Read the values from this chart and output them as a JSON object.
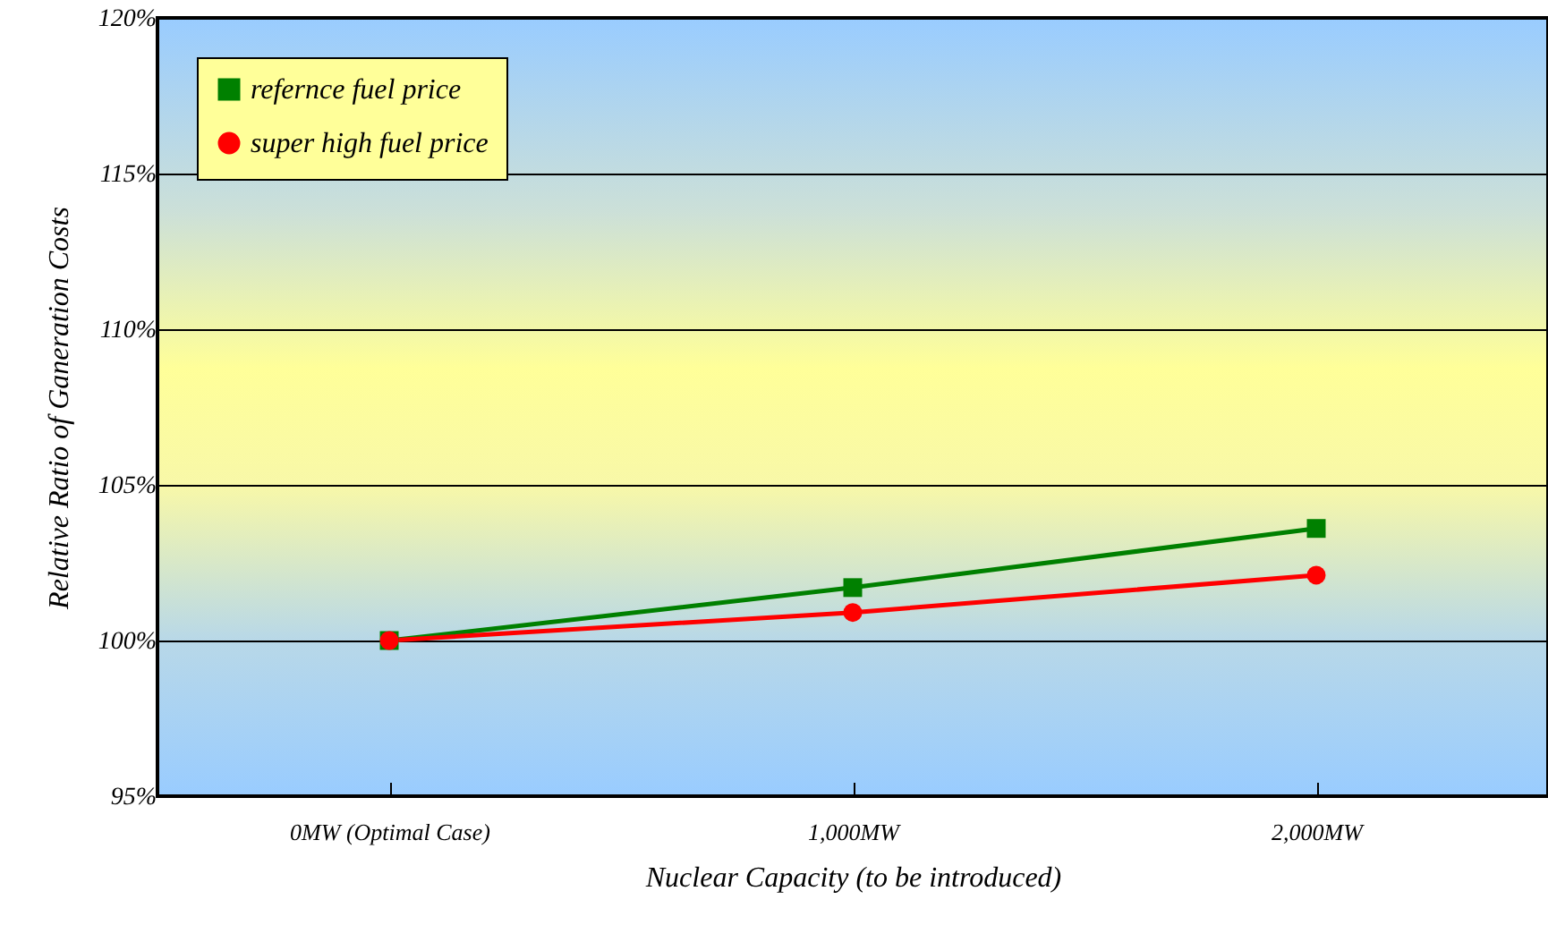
{
  "chart_data": {
    "type": "line",
    "xlabel": "Nuclear Capacity (to be introduced)",
    "ylabel": "Relative Ratio of Ganeration Costs",
    "categories": [
      "0MW (Optimal Case)",
      "1,000MW",
      "2,000MW"
    ],
    "series": [
      {
        "name": "refernce fuel price",
        "color": "#008000",
        "marker": "square",
        "values": [
          100,
          101.7,
          103.6
        ]
      },
      {
        "name": "super high fuel price",
        "color": "#ff0000",
        "marker": "circle",
        "values": [
          100,
          100.9,
          102.1
        ]
      }
    ],
    "ylim": [
      95,
      120
    ],
    "yticks": [
      {
        "value": 95,
        "label": "95%"
      },
      {
        "value": 100,
        "label": "100%"
      },
      {
        "value": 105,
        "label": "105%"
      },
      {
        "value": 110,
        "label": "110%"
      },
      {
        "value": 115,
        "label": "115%"
      },
      {
        "value": 120,
        "label": "120%"
      }
    ],
    "grid": "y",
    "legend": "top left",
    "line_style": "solid"
  }
}
